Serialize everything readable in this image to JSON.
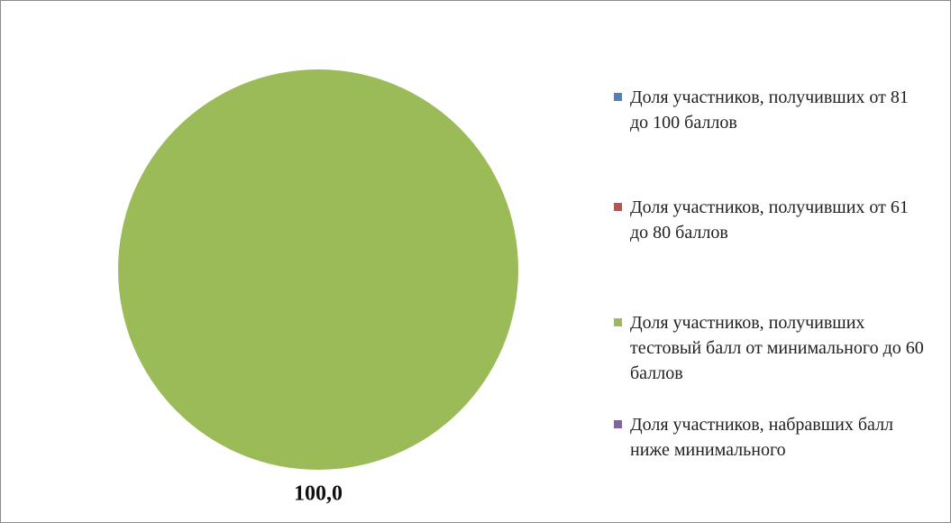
{
  "chart_data": {
    "type": "pie",
    "categories": [
      "Доля участников, получивших от 81 до 100 баллов",
      "Доля участников, получивших от 61 до 80 баллов",
      "Доля участников, получивших тестовый балл от минимального до 60 баллов",
      "Доля участников, набравших балл ниже минимального"
    ],
    "values": [
      0,
      0,
      100,
      0
    ],
    "value_labels": [
      null,
      null,
      "100,0",
      null
    ],
    "colors": [
      "#4f81bd",
      "#c0504d",
      "#9bbb59",
      "#8064a2"
    ],
    "legend": "right"
  }
}
